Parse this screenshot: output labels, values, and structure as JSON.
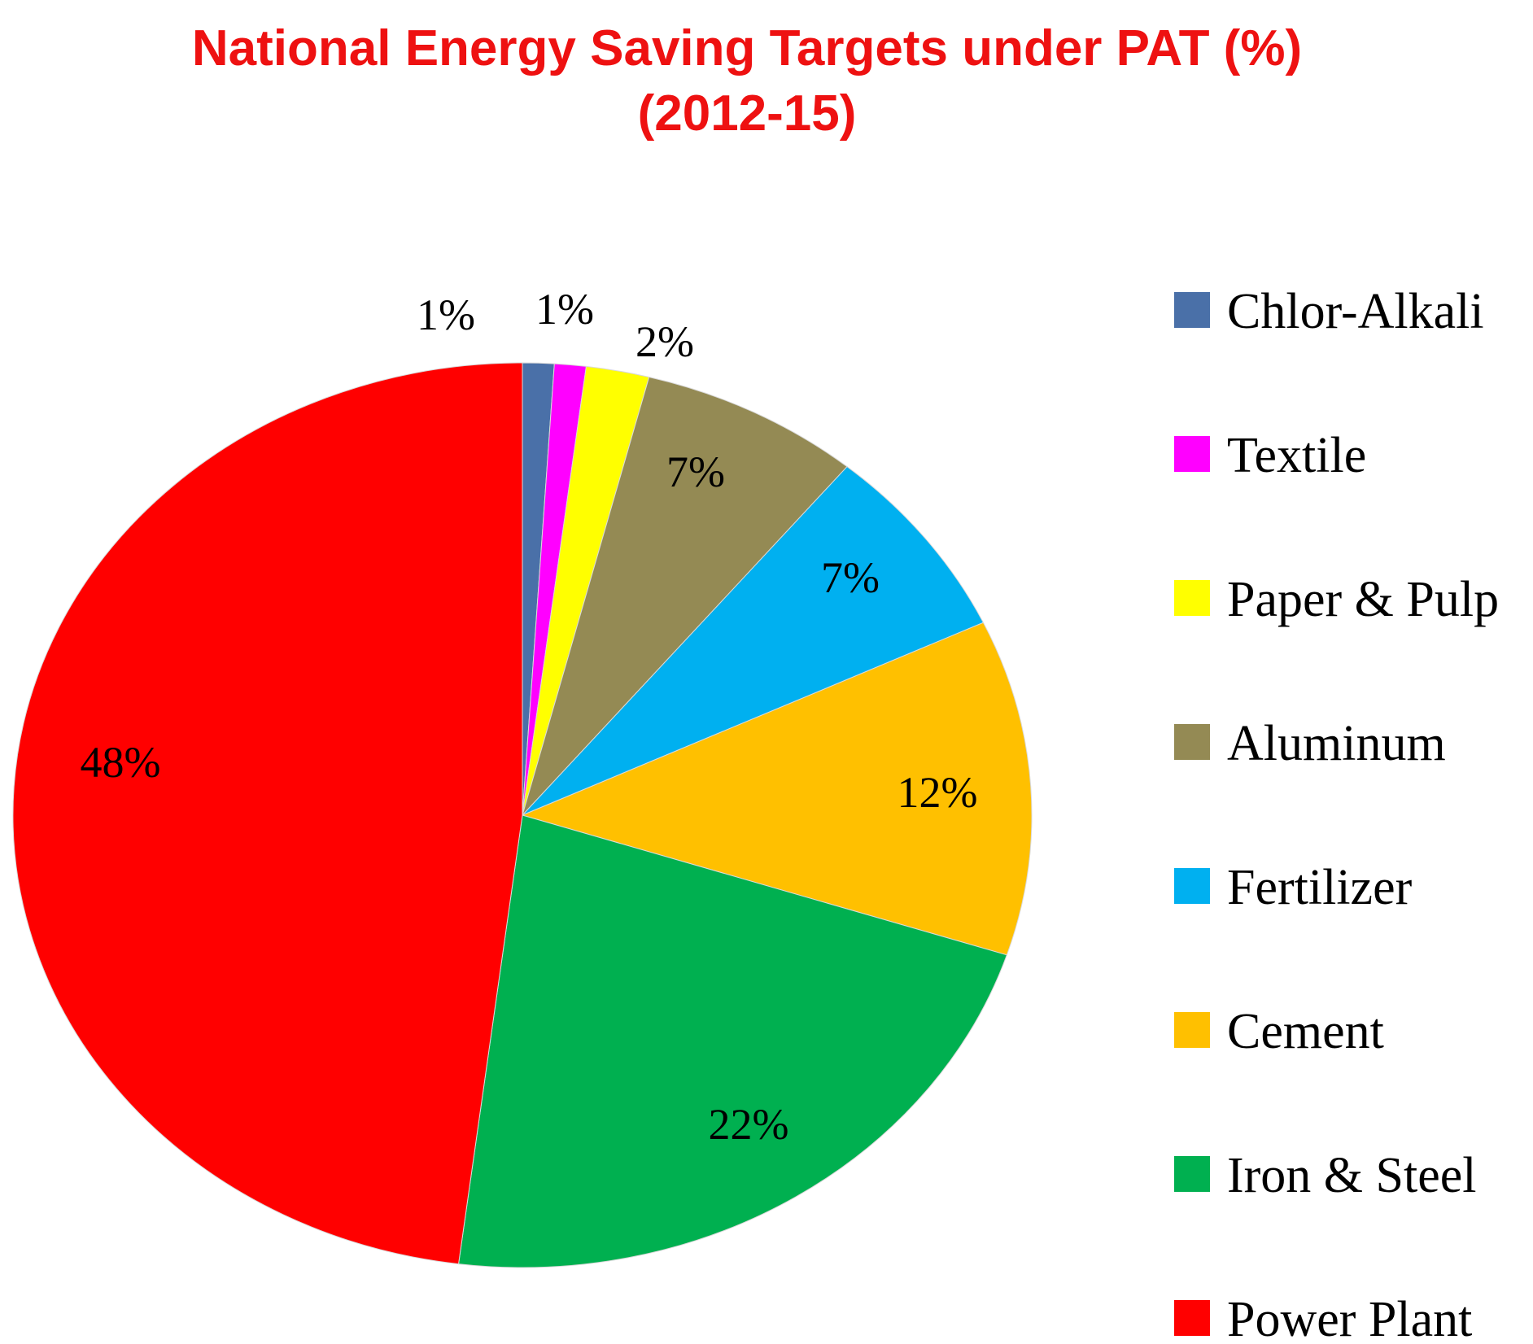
{
  "chart_data": {
    "type": "pie",
    "title": "National Energy Saving Targets under PAT (%)",
    "subtitle": "(2012-15)",
    "unit": "%",
    "legend_position": "right",
    "slices": [
      {
        "name": "Chlor-Alkali",
        "value": 1,
        "label": "1%",
        "color": "#4a70a8"
      },
      {
        "name": "Textile",
        "value": 1,
        "label": "1%",
        "color": "#ff00ff"
      },
      {
        "name": "Paper & Pulp",
        "value": 2,
        "label": "2%",
        "color": "#ffff00"
      },
      {
        "name": "Aluminum",
        "value": 7,
        "label": "7%",
        "color": "#948a54"
      },
      {
        "name": "Fertilizer",
        "value": 7,
        "label": "7%",
        "color": "#00b0f0"
      },
      {
        "name": "Cement",
        "value": 12,
        "label": "12%",
        "color": "#ffc000"
      },
      {
        "name": "Iron & Steel",
        "value": 22,
        "label": "22%",
        "color": "#00b050"
      },
      {
        "name": "Power Plant",
        "value": 48,
        "label": "48%",
        "color": "#ff0000"
      }
    ]
  }
}
